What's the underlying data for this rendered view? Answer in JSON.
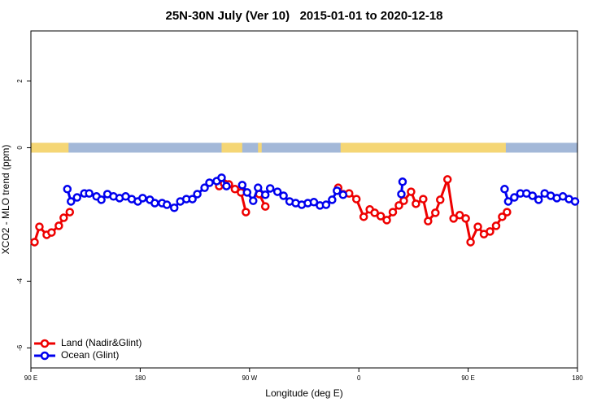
{
  "chart_data": {
    "type": "line",
    "title": "25N-30N July (Ver 10)   2015-01-01 to 2020-12-18",
    "x_label": "Longitude (deg E)",
    "y_label": "XCO2 - MLO trend (ppm)",
    "xlim": [
      90,
      540
    ],
    "xticks": [
      {
        "value": 90,
        "label": "90 E"
      },
      {
        "value": 180,
        "label": "180"
      },
      {
        "value": 270,
        "label": "90 W"
      },
      {
        "value": 360,
        "label": "0"
      },
      {
        "value": 450,
        "label": "90 E"
      },
      {
        "value": 540,
        "label": "180"
      }
    ],
    "ylim": [
      -6.6,
      3.5
    ],
    "yticks": [
      -6,
      -4,
      0,
      2
    ],
    "legend": "bottom-left",
    "surface_strip": {
      "y": 0,
      "ocean_color": "#a3b8d8",
      "land_color": "#f5d675",
      "land": [
        [
          90,
          121
        ],
        [
          247,
          264
        ],
        [
          277,
          280
        ],
        [
          345,
          481
        ]
      ]
    },
    "series": [
      {
        "name": "Land (Nadir&Glint)",
        "color": "#ee0000",
        "x": [
          93,
          97,
          103,
          107,
          113,
          117,
          122,
          null,
          245,
          249,
          253,
          258,
          263,
          267,
          null,
          278,
          283,
          null,
          343,
          347,
          352,
          358,
          364,
          369,
          373,
          378,
          383,
          388,
          393,
          397,
          403,
          407,
          413,
          417,
          423,
          427,
          433,
          438,
          443,
          448,
          452,
          458,
          463,
          468,
          473,
          478,
          482
        ],
        "values": [
          -2.83,
          -2.37,
          -2.61,
          -2.54,
          -2.34,
          -2.1,
          -1.93,
          null,
          -1.15,
          -1.07,
          -1.1,
          -1.24,
          -1.34,
          -1.93,
          null,
          -1.39,
          -1.76,
          null,
          -1.2,
          -1.39,
          -1.37,
          -1.54,
          -2.07,
          -1.85,
          -1.95,
          -2.05,
          -2.17,
          -1.93,
          -1.73,
          -1.59,
          -1.32,
          -1.68,
          -1.54,
          -2.2,
          -1.95,
          -1.56,
          -0.95,
          -2.12,
          -2.02,
          -2.12,
          -2.83,
          -2.37,
          -2.59,
          -2.51,
          -2.34,
          -2.07,
          -1.93
        ]
      },
      {
        "name": "Ocean (Glint)",
        "color": "#0000ee",
        "x": [
          120,
          123,
          128,
          134,
          138,
          144,
          148,
          153,
          158,
          163,
          168,
          173,
          178,
          182,
          188,
          192,
          198,
          202,
          208,
          213,
          218,
          223,
          227,
          233,
          237,
          243,
          247,
          251,
          null,
          264,
          268,
          273,
          277,
          283,
          287,
          293,
          298,
          303,
          308,
          313,
          318,
          323,
          328,
          333,
          338,
          342,
          347,
          null,
          395,
          396,
          null,
          480,
          483,
          488,
          493,
          498,
          503,
          508,
          513,
          518,
          523,
          528,
          533,
          538
        ],
        "values": [
          -1.24,
          -1.61,
          -1.49,
          -1.37,
          -1.37,
          -1.46,
          -1.56,
          -1.39,
          -1.46,
          -1.51,
          -1.46,
          -1.54,
          -1.61,
          -1.51,
          -1.56,
          -1.66,
          -1.66,
          -1.71,
          -1.8,
          -1.61,
          -1.54,
          -1.54,
          -1.39,
          -1.2,
          -1.05,
          -1.0,
          -0.9,
          -1.15,
          null,
          -1.12,
          -1.34,
          -1.59,
          -1.2,
          -1.41,
          -1.22,
          -1.32,
          -1.44,
          -1.61,
          -1.66,
          -1.71,
          -1.66,
          -1.63,
          -1.73,
          -1.71,
          -1.56,
          -1.29,
          -1.41,
          null,
          -1.39,
          -1.02,
          null,
          -1.24,
          -1.61,
          -1.49,
          -1.37,
          -1.37,
          -1.44,
          -1.56,
          -1.37,
          -1.44,
          -1.51,
          -1.46,
          -1.54,
          -1.61
        ]
      }
    ]
  }
}
